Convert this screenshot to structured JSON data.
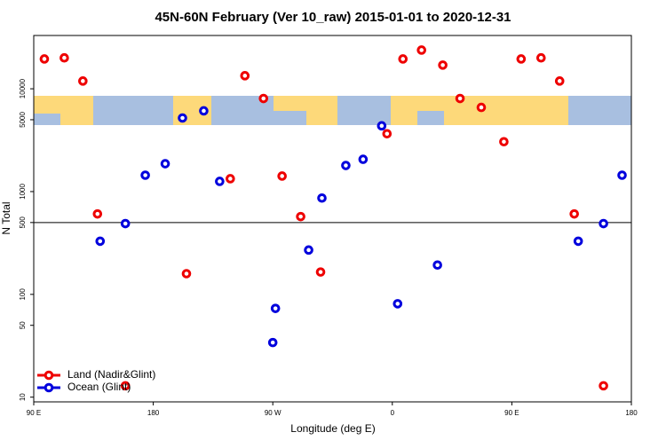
{
  "chart_data": {
    "type": "scatter",
    "title": "45N-60N February (Ver 10_raw)   2015-01-01 to 2020-12-31",
    "x_label": "Longitude (deg E)",
    "y_label": "N Total",
    "xlim": [
      90,
      540
    ],
    "ylim": [
      9,
      33000
    ],
    "log_y": true,
    "xticks": [
      {
        "value": 90,
        "label": "90 E"
      },
      180,
      {
        "value": 270,
        "label": "90 W"
      },
      {
        "value": 360,
        "label": "0"
      },
      {
        "value": 450,
        "label": "90 E"
      },
      {
        "value": 540,
        "label": "180"
      }
    ],
    "yticks": [
      10,
      50,
      100,
      500,
      1000,
      5000,
      10000
    ],
    "hline": 500,
    "legend": "bottom-left",
    "series": [
      {
        "name": "Land (Nadir&Glint)",
        "color": "#ee0000",
        "x": [
          98,
          113,
          127,
          138,
          159,
          205,
          238,
          249,
          263,
          277,
          291,
          306,
          356,
          368,
          382,
          398,
          411,
          427,
          444,
          457,
          472,
          486,
          497,
          519
        ],
        "values": [
          19500,
          20000,
          11900,
          606,
          12.9,
          159,
          1334,
          13400,
          8040,
          1415,
          571,
          165,
          3650,
          19500,
          23800,
          17000,
          8040,
          6590,
          3055,
          19500,
          20000,
          11900,
          606,
          12.9
        ]
      },
      {
        "name": "Ocean (Glint)",
        "color": "#0000dd",
        "x": [
          140,
          159,
          174,
          189,
          202,
          218,
          230,
          270,
          272,
          297,
          307,
          325,
          338,
          352,
          364,
          394,
          500,
          519,
          533
        ],
        "values": [
          329,
          488,
          1443,
          1866,
          5200,
          6100,
          1257,
          34,
          73,
          270,
          865,
          1794,
          2060,
          4360,
          81,
          193,
          329,
          488,
          1443
        ]
      }
    ]
  }
}
